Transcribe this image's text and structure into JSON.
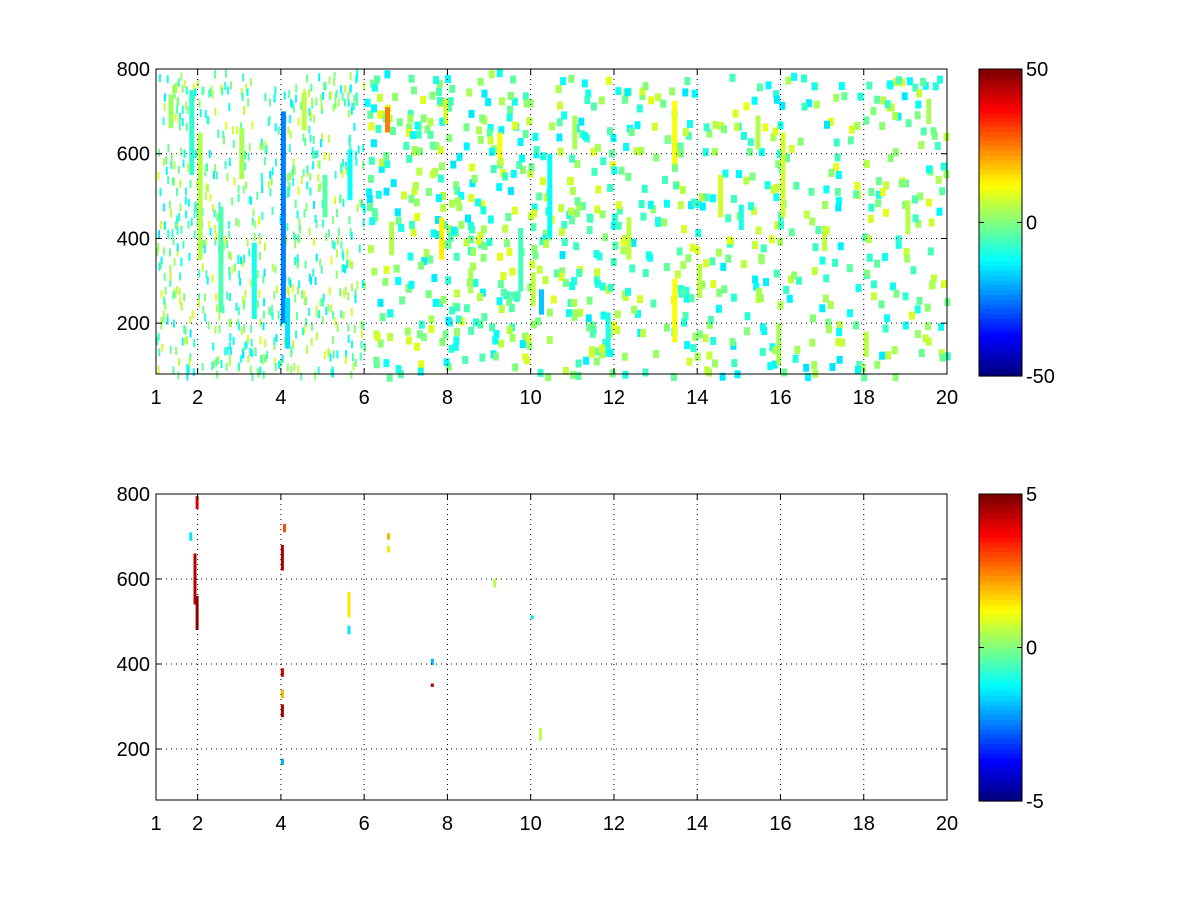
{
  "chart_data": [
    {
      "type": "heatmap",
      "title": "",
      "xlabel": "",
      "ylabel": "",
      "xlim": [
        1,
        20
      ],
      "ylim": [
        80,
        800
      ],
      "x_ticks": [
        1,
        2,
        4,
        6,
        8,
        10,
        12,
        14,
        16,
        18,
        20
      ],
      "y_ticks": [
        200,
        400,
        600,
        800
      ],
      "x_tick_labels": [
        "1",
        "2",
        "4",
        "6",
        "8",
        "10",
        "12",
        "14",
        "16",
        "18",
        "20"
      ],
      "y_tick_labels": [
        "200",
        "400",
        "600",
        "800"
      ],
      "grid": true,
      "colormap": "jet",
      "clim": [
        -50,
        50
      ],
      "colorbar_ticks": [
        -50,
        0,
        50
      ],
      "colorbar_tick_labels": [
        "-50",
        "0",
        "50"
      ],
      "data_description": "dense scattered cells, values mostly between -15 and 10",
      "cells": [
        [
          1.3,
          700,
          3,
          80
        ],
        [
          1.8,
          650,
          -8,
          200
        ],
        [
          2.0,
          500,
          5,
          300
        ],
        [
          2.5,
          350,
          -5,
          250
        ],
        [
          3.0,
          600,
          4,
          120
        ],
        [
          3.3,
          300,
          -10,
          180
        ],
        [
          4.0,
          450,
          -25,
          500
        ],
        [
          4.1,
          200,
          -15,
          120
        ],
        [
          4.5,
          700,
          6,
          90
        ],
        [
          5.0,
          500,
          -4,
          100
        ],
        [
          5.6,
          550,
          -12,
          120
        ],
        [
          6.5,
          680,
          25,
          60
        ],
        [
          6.6,
          400,
          5,
          80
        ],
        [
          7.8,
          400,
          14,
          100
        ],
        [
          7.9,
          700,
          8,
          60
        ],
        [
          8.5,
          300,
          4,
          60
        ],
        [
          9.2,
          620,
          12,
          60
        ],
        [
          9.7,
          350,
          -6,
          150
        ],
        [
          10.0,
          280,
          6,
          80
        ],
        [
          10.2,
          250,
          -18,
          60
        ],
        [
          10.4,
          500,
          -12,
          200
        ],
        [
          11.0,
          650,
          4,
          80
        ],
        [
          11.8,
          180,
          -10,
          90
        ],
        [
          12.3,
          400,
          6,
          100
        ],
        [
          13.4,
          230,
          12,
          150
        ],
        [
          13.4,
          650,
          12,
          150
        ],
        [
          14.0,
          300,
          6,
          80
        ],
        [
          14.5,
          500,
          8,
          100
        ],
        [
          15.0,
          450,
          -10,
          60
        ],
        [
          15.4,
          650,
          5,
          80
        ],
        [
          15.9,
          150,
          4,
          100
        ],
        [
          16.0,
          550,
          8,
          200
        ],
        [
          17.0,
          400,
          6,
          60
        ],
        [
          18.0,
          150,
          6,
          60
        ],
        [
          19.0,
          450,
          5,
          80
        ],
        [
          19.5,
          700,
          4,
          60
        ]
      ]
    },
    {
      "type": "heatmap",
      "title": "",
      "xlabel": "",
      "ylabel": "",
      "xlim": [
        1,
        20
      ],
      "ylim": [
        80,
        800
      ],
      "x_ticks": [
        1,
        2,
        4,
        6,
        8,
        10,
        12,
        14,
        16,
        18,
        20
      ],
      "y_ticks": [
        200,
        400,
        600,
        800
      ],
      "x_tick_labels": [
        "1",
        "2",
        "4",
        "6",
        "8",
        "10",
        "12",
        "14",
        "16",
        "18",
        "20"
      ],
      "y_tick_labels": [
        "200",
        "400",
        "600",
        "800"
      ],
      "grid": true,
      "colormap": "jet",
      "clim": [
        -5,
        5
      ],
      "colorbar_ticks": [
        -5,
        0,
        5
      ],
      "colorbar_tick_labels": [
        "-5",
        "0",
        "5"
      ],
      "cells": [
        [
          1.8,
          700,
          -1.5,
          20
        ],
        [
          1.9,
          600,
          4.5,
          120
        ],
        [
          1.95,
          520,
          4.8,
          80
        ],
        [
          1.95,
          780,
          4.0,
          30
        ],
        [
          4.0,
          650,
          4.5,
          60
        ],
        [
          4.0,
          380,
          4.2,
          20
        ],
        [
          4.0,
          330,
          2.0,
          20
        ],
        [
          4.0,
          290,
          4.6,
          30
        ],
        [
          4.0,
          170,
          -2.0,
          15
        ],
        [
          4.05,
          720,
          3.0,
          20
        ],
        [
          5.6,
          540,
          1.5,
          60
        ],
        [
          5.6,
          480,
          -1.5,
          20
        ],
        [
          6.55,
          700,
          2.0,
          15
        ],
        [
          6.55,
          670,
          1.5,
          15
        ],
        [
          7.6,
          405,
          -2.0,
          15
        ],
        [
          7.6,
          350,
          4.5,
          8
        ],
        [
          9.1,
          590,
          0.5,
          20
        ],
        [
          10.0,
          510,
          -1.5,
          8
        ],
        [
          10.2,
          235,
          0.6,
          30
        ]
      ]
    }
  ]
}
